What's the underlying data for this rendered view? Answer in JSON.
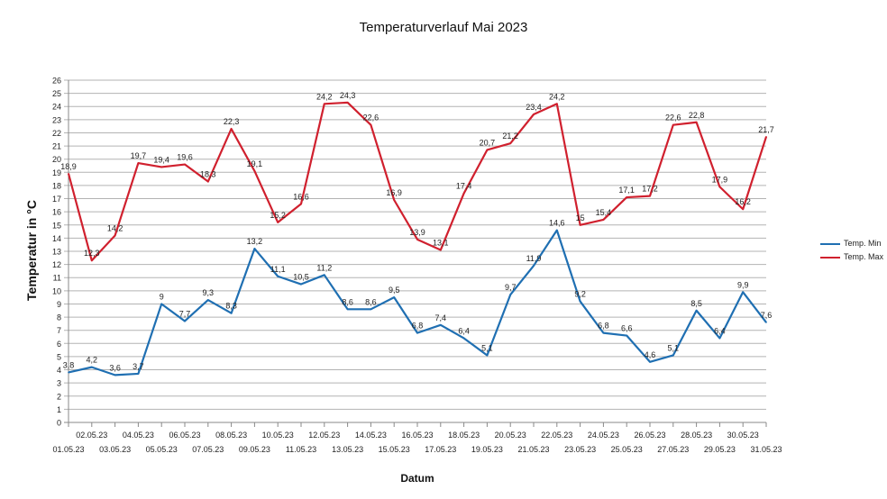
{
  "chart_data": {
    "type": "line",
    "title": "Temperaturverlauf Mai 2023",
    "xlabel": "Datum",
    "ylabel": "Temperatur in °C",
    "ylim": [
      0,
      26
    ],
    "yticks": [
      0,
      1,
      2,
      3,
      4,
      5,
      6,
      7,
      8,
      9,
      10,
      11,
      12,
      13,
      14,
      15,
      16,
      17,
      18,
      19,
      20,
      21,
      22,
      23,
      24,
      25,
      26
    ],
    "grid": "horizontal",
    "legend": "right",
    "categories": [
      "01.05.23",
      "02.05.23",
      "03.05.23",
      "04.05.23",
      "05.05.23",
      "06.05.23",
      "07.05.23",
      "08.05.23",
      "09.05.23",
      "10.05.23",
      "11.05.23",
      "12.05.23",
      "13.05.23",
      "14.05.23",
      "15.05.23",
      "16.05.23",
      "17.05.23",
      "18.05.23",
      "19.05.23",
      "20.05.23",
      "21.05.23",
      "22.05.23",
      "23.05.23",
      "24.05.23",
      "25.05.23",
      "26.05.23",
      "27.05.23",
      "28.05.23",
      "29.05.23",
      "30.05.23",
      "31.05.23"
    ],
    "series": [
      {
        "name": "Temp. Min",
        "color": "#1f6fb2",
        "values": [
          3.8,
          4.2,
          3.6,
          3.7,
          9,
          7.7,
          9.3,
          8.3,
          13.2,
          11.1,
          10.5,
          11.2,
          8.6,
          8.6,
          9.5,
          6.8,
          7.4,
          6.4,
          5.1,
          9.7,
          11.9,
          14.6,
          9.2,
          6.8,
          6.6,
          4.6,
          5.1,
          8.5,
          6.4,
          9.9,
          7.6
        ]
      },
      {
        "name": "Temp. Max",
        "color": "#d0202e",
        "values": [
          18.9,
          12.3,
          14.2,
          19.7,
          19.4,
          19.6,
          18.3,
          22.3,
          19.1,
          15.2,
          16.6,
          24.2,
          24.3,
          22.6,
          16.9,
          13.9,
          13.1,
          17.4,
          20.7,
          21.2,
          23.4,
          24.2,
          15,
          15.4,
          17.1,
          17.2,
          22.6,
          22.8,
          17.9,
          16.2,
          21.7
        ]
      }
    ]
  }
}
